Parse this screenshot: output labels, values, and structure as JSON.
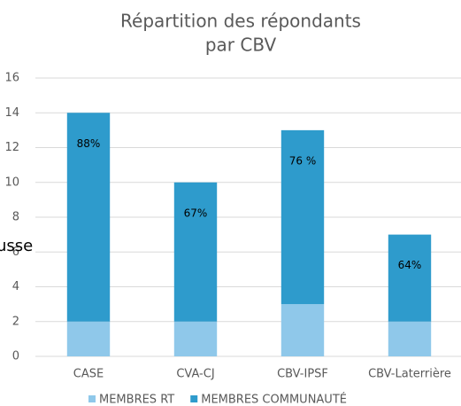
{
  "chart_data": {
    "type": "stacked_bar",
    "title": [
      "Répartition des répondants",
      "par CBV"
    ],
    "categories": [
      "CASE",
      "CVA-CJ",
      "CBV-IPSF",
      "CBV-Laterrière"
    ],
    "series": [
      {
        "name": "MEMBRES RT",
        "color": "#8fc8ea",
        "values": [
          2,
          2,
          3,
          2
        ]
      },
      {
        "name": "MEMBRES COMMUNAUTÉ",
        "color": "#2e9bcc",
        "values": [
          12,
          8,
          10,
          5
        ]
      }
    ],
    "annotations": [
      "88%",
      "67%",
      "76 %",
      "64%"
    ],
    "side_text": "usse",
    "ylim": [
      0,
      16
    ],
    "yticks": [
      0,
      2,
      4,
      6,
      8,
      10,
      12,
      14,
      16
    ],
    "grid": true
  }
}
